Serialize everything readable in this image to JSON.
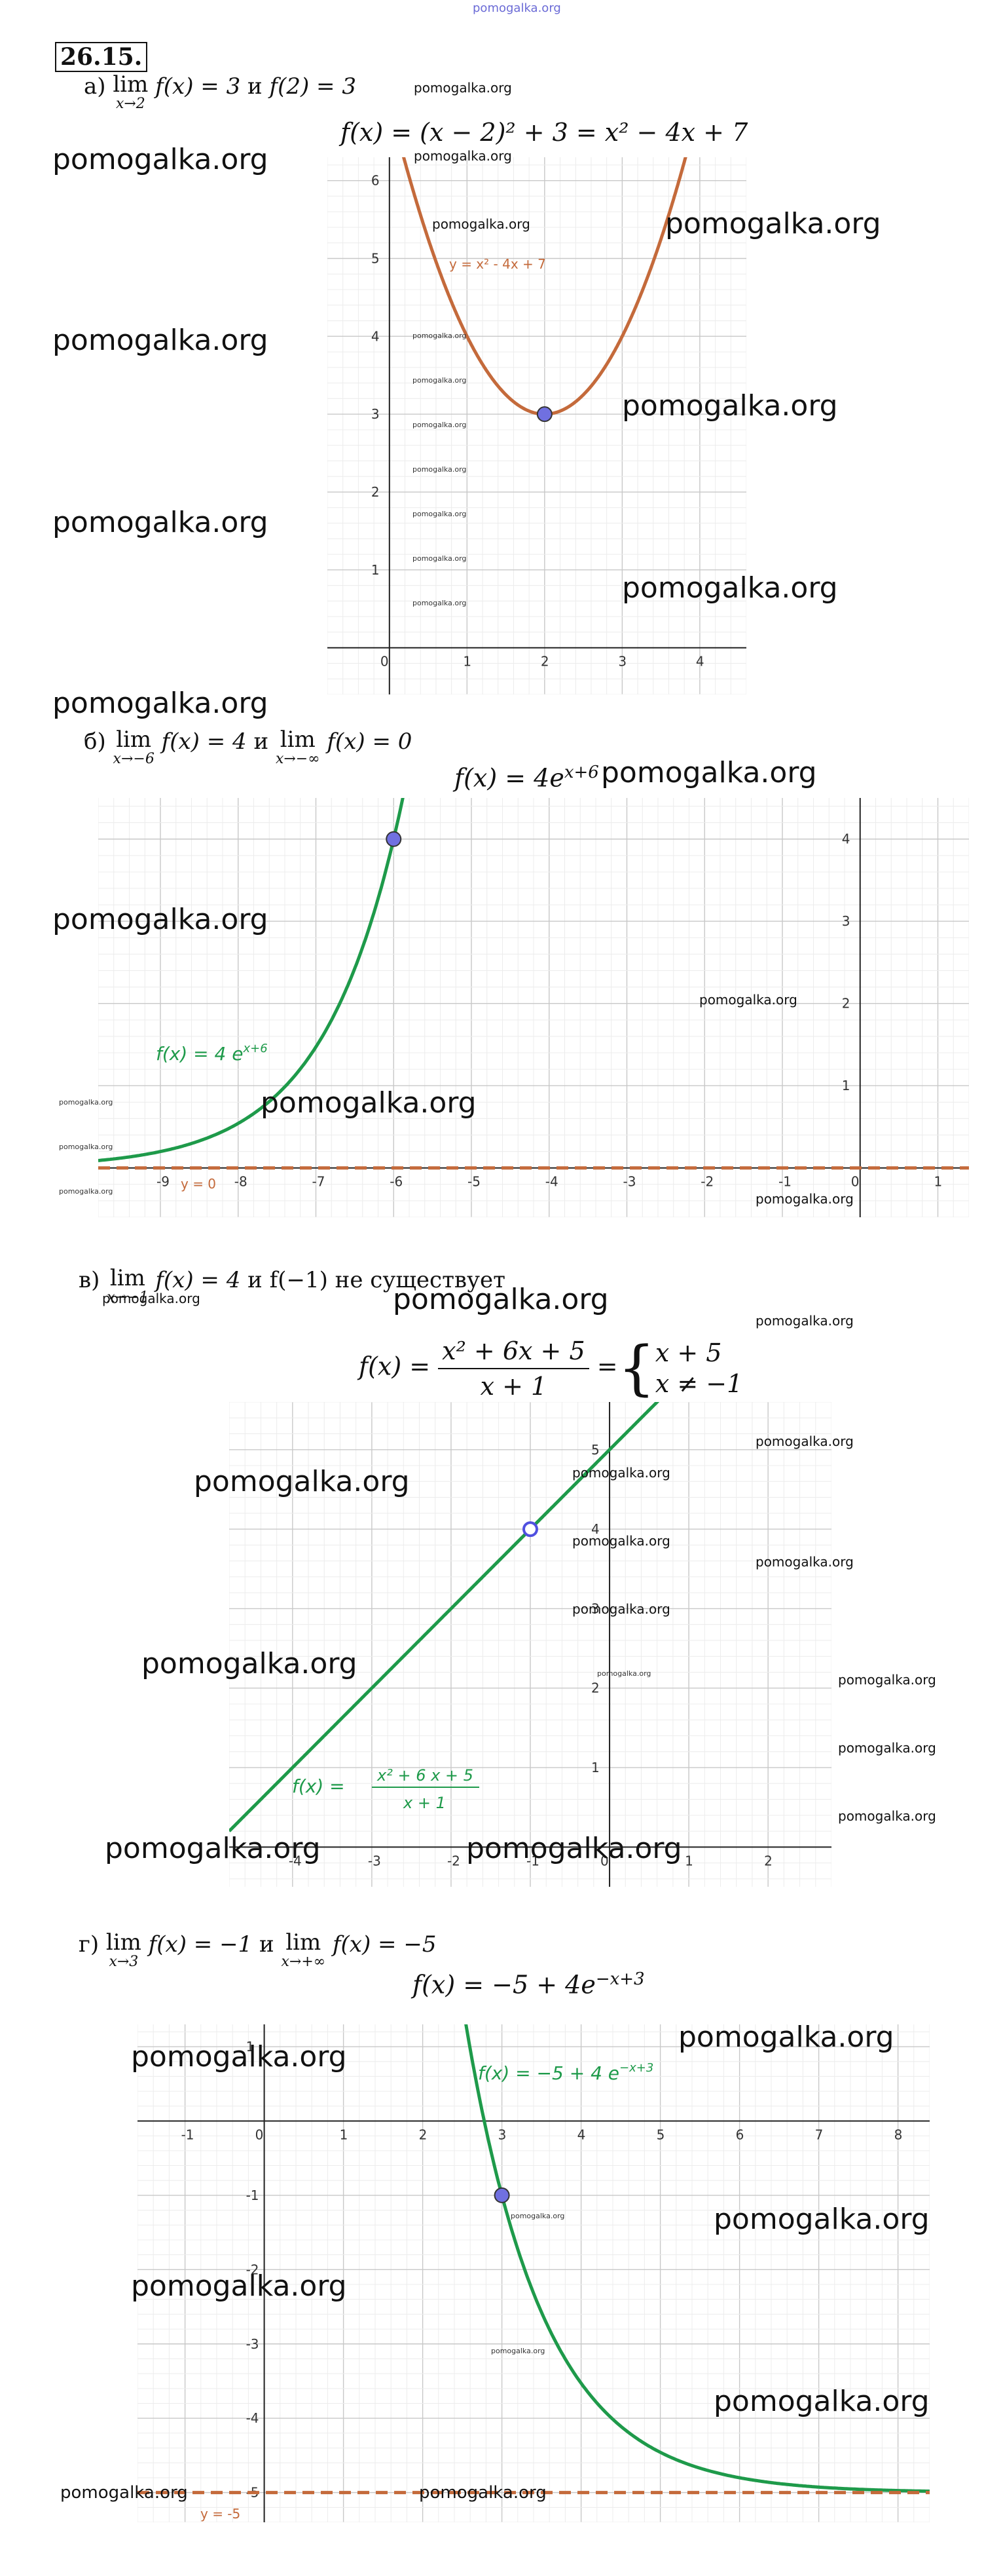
{
  "header": {
    "site": "pomogalka.org"
  },
  "problem_number": "26.15.",
  "watermark": "pomogalka.org",
  "parts": [
    {
      "letter": "а)",
      "condition": {
        "lim1": "lim",
        "sub1": "x→2",
        "f1": "f(x) = 3",
        "conj": "и",
        "rest": "f(2) = 3"
      },
      "formula": "f(x) = (x − 2)² + 3 = x² − 4x + 7",
      "curve_label": "y = x² - 4x + 7"
    },
    {
      "letter": "б)",
      "condition": {
        "lim1": "lim",
        "sub1": "x→−6",
        "f1": "f(x) = 4",
        "conj": "и",
        "lim2": "lim",
        "sub2": "x→−∞",
        "f2": "f(x) = 0"
      },
      "formula_base": "f(x) = 4e",
      "formula_exp": "x+6",
      "curve_label_base": "f(x)  =  4 e",
      "curve_label_exp": "x+6",
      "asymptote_label": "y = 0"
    },
    {
      "letter": "в)",
      "condition": {
        "lim1": "lim",
        "sub1": "x→−1",
        "f1": "f(x) = 4",
        "conj": "и",
        "rest": "f(−1) не существует"
      },
      "formula_lhs": "f(x) =",
      "formula_num": "x² + 6x + 5",
      "formula_den": "x + 1",
      "formula_eq": "=",
      "case1": "x + 5",
      "case2": "x ≠ −1",
      "curve_label_lhs": "f(x)  =",
      "curve_label_num": "x² + 6 x + 5",
      "curve_label_den": "x + 1"
    },
    {
      "letter": "г)",
      "condition": {
        "lim1": "lim",
        "sub1": "x→3",
        "f1": "f(x) = −1",
        "conj": "и",
        "lim2": "lim",
        "sub2": "x→+∞",
        "f2": "f(x) = −5"
      },
      "formula_base": "f(x) = −5 + 4e",
      "formula_exp": "−x+3",
      "curve_label_base": "f(x)  =  −5 + 4 e",
      "curve_label_exp": "−x+3",
      "asymptote_label": "y = -5"
    }
  ],
  "chart_data": [
    {
      "type": "line",
      "series": [
        {
          "name": "y = x² - 4x + 7",
          "function": "x^2 - 4x + 7",
          "color": "#c46a3b"
        }
      ],
      "points": [
        {
          "x": 2,
          "y": 3,
          "style": "filled",
          "color": "#7070e0"
        }
      ],
      "xlim": [
        -0.8,
        4.6
      ],
      "ylim": [
        -0.6,
        6.3
      ],
      "x_ticks": [
        0,
        1,
        2,
        3,
        4
      ],
      "y_ticks": [
        1,
        2,
        3,
        4,
        5,
        6
      ],
      "grid": true
    },
    {
      "type": "line",
      "series": [
        {
          "name": "f(x) = 4e^(x+6)",
          "function": "4*e^(x+6)",
          "color": "#1e9a4a"
        }
      ],
      "points": [
        {
          "x": -6,
          "y": 4,
          "style": "filled",
          "color": "#7070e0"
        }
      ],
      "asymptote": {
        "y": 0,
        "color": "#c46a3b",
        "style": "dashed"
      },
      "xlim": [
        -9.8,
        1.4
      ],
      "ylim": [
        -0.6,
        4.5
      ],
      "x_ticks": [
        -9,
        -8,
        -7,
        -6,
        -5,
        -4,
        -3,
        -2,
        -1,
        0,
        1
      ],
      "y_ticks": [
        1,
        2,
        3,
        4
      ],
      "grid": true
    },
    {
      "type": "line",
      "series": [
        {
          "name": "f(x) = (x²+6x+5)/(x+1)",
          "function": "x + 5",
          "color": "#1e9a4a"
        }
      ],
      "points": [
        {
          "x": -1,
          "y": 4,
          "style": "hollow",
          "color": "#5050e0"
        }
      ],
      "xlim": [
        -4.8,
        2.8
      ],
      "ylim": [
        -0.5,
        5.6
      ],
      "x_ticks": [
        -4,
        -3,
        -2,
        -1,
        0,
        1,
        2
      ],
      "y_ticks": [
        1,
        2,
        3,
        4,
        5
      ],
      "grid": true
    },
    {
      "type": "line",
      "series": [
        {
          "name": "f(x) = -5 + 4e^(-x+3)",
          "function": "-5 + 4*e^(-x+3)",
          "color": "#1e9a4a"
        }
      ],
      "points": [
        {
          "x": 3,
          "y": -1,
          "style": "filled",
          "color": "#7070e0"
        }
      ],
      "asymptote": {
        "y": -5,
        "color": "#c46a3b",
        "style": "dashed"
      },
      "xlim": [
        -1.6,
        8.4
      ],
      "ylim": [
        -5.4,
        1.3
      ],
      "x_ticks": [
        -1,
        0,
        1,
        2,
        3,
        4,
        5,
        6,
        7,
        8
      ],
      "y_ticks": [
        1,
        -1,
        -2,
        -3,
        -4,
        -5
      ],
      "grid": true
    }
  ]
}
